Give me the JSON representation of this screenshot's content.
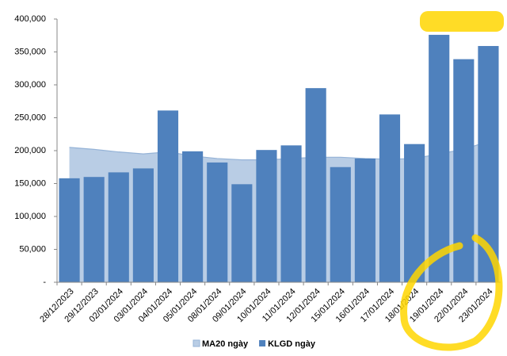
{
  "chart_data": {
    "type": "bar",
    "categories": [
      "28/12/2023",
      "29/12/2023",
      "02/01/2024",
      "03/01/2024",
      "04/01/2024",
      "05/01/2024",
      "08/01/2024",
      "09/01/2024",
      "10/01/2024",
      "11/01/2024",
      "12/01/2024",
      "15/01/2024",
      "16/01/2024",
      "17/01/2024",
      "18/01/2024",
      "19/01/2024",
      "22/01/2024",
      "23/01/2024"
    ],
    "series": [
      {
        "name": "MA20 ngày",
        "type": "area",
        "color": "#b9cde5",
        "values": [
          205000,
          202000,
          198000,
          195000,
          198000,
          192000,
          188000,
          186000,
          186000,
          188000,
          190000,
          190000,
          188000,
          187000,
          188000,
          195000,
          202000,
          214000
        ]
      },
      {
        "name": "KLGD ngày",
        "type": "bar",
        "color": "#4f81bd",
        "values": [
          158000,
          160000,
          167000,
          173000,
          261000,
          199000,
          182000,
          149000,
          201000,
          208000,
          295000,
          175000,
          188000,
          255000,
          210000,
          376000,
          339000,
          359000
        ]
      }
    ],
    "ylim": [
      0,
      400000
    ],
    "yticks": [
      {
        "value": 0,
        "label": "-"
      },
      {
        "value": 50000,
        "label": "50,000"
      },
      {
        "value": 100000,
        "label": "100,000"
      },
      {
        "value": 150000,
        "label": "150,000"
      },
      {
        "value": 200000,
        "label": "200,000"
      },
      {
        "value": 250000,
        "label": "250,000"
      },
      {
        "value": 300000,
        "label": "300,000"
      },
      {
        "value": 350000,
        "label": "350,000"
      },
      {
        "value": 400000,
        "label": "400,000"
      }
    ],
    "legend": "bottom"
  }
}
